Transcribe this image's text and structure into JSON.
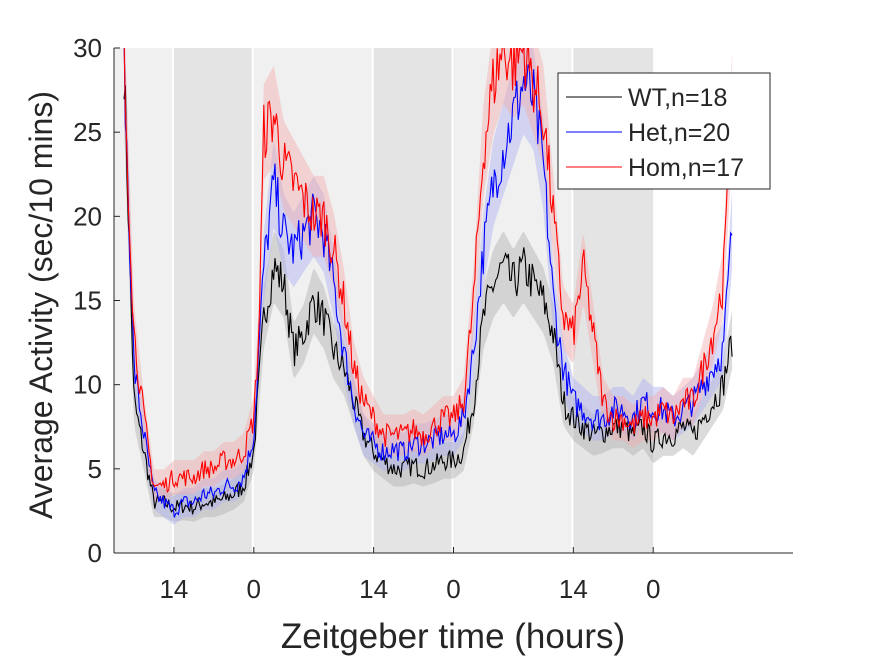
{
  "chart_data": {
    "type": "line",
    "xlabel": "Zeitgeber time (hours)",
    "ylabel": "Average Activity (sec/10 mins)",
    "ylim": [
      0,
      30
    ],
    "yticks": [
      0,
      5,
      10,
      15,
      20,
      25,
      30
    ],
    "xlim": [
      11,
      45
    ],
    "xticks": [
      {
        "x": 14,
        "label": "14"
      },
      {
        "x": 18,
        "label": "0"
      },
      {
        "x": 24,
        "label": "14"
      },
      {
        "x": 28,
        "label": "0"
      },
      {
        "x": 34,
        "label": "14"
      },
      {
        "x": 38,
        "label": "0"
      }
    ],
    "shading": {
      "light_color": "#f0f0f0",
      "dark_color": "#e4e4e4",
      "bands": [
        {
          "from": 11,
          "to": 13.9,
          "kind": "light"
        },
        {
          "from": 14,
          "to": 17.9,
          "kind": "dark"
        },
        {
          "from": 18,
          "to": 23.9,
          "kind": "light"
        },
        {
          "from": 24,
          "to": 27.9,
          "kind": "dark"
        },
        {
          "from": 28,
          "to": 33.9,
          "kind": "light"
        },
        {
          "from": 34,
          "to": 38,
          "kind": "dark"
        }
      ]
    },
    "legend": {
      "position": "top-right"
    },
    "x": [
      11.5,
      12.0,
      12.5,
      13.0,
      13.5,
      14.0,
      14.5,
      15.0,
      15.5,
      16.0,
      16.5,
      17.0,
      17.5,
      18.0,
      18.25,
      18.5,
      19.0,
      19.5,
      20.0,
      20.5,
      21.0,
      21.5,
      22.0,
      22.5,
      23.0,
      23.5,
      24.0,
      24.5,
      25.0,
      25.5,
      26.0,
      26.5,
      27.0,
      27.5,
      28.0,
      28.5,
      29.0,
      29.5,
      30.0,
      30.5,
      31.0,
      31.5,
      32.0,
      32.5,
      33.0,
      33.5,
      34.0,
      34.5,
      35.0,
      35.5,
      36.0,
      36.5,
      37.0,
      37.5,
      38.0,
      38.5,
      39.0,
      39.5,
      40.0,
      40.5,
      41.0,
      41.5,
      42.0
    ],
    "series": [
      {
        "name": "WT,n=18",
        "color": "#000000",
        "band_color": "#b0b0b0",
        "values": [
          29,
          9,
          6,
          3,
          3,
          2.7,
          2.8,
          2.7,
          3,
          3,
          3.2,
          3.5,
          4,
          6,
          10,
          14,
          17,
          16,
          12,
          13,
          15,
          14,
          12,
          11,
          9,
          7,
          6,
          5.5,
          5,
          5,
          5.2,
          5,
          5.2,
          5.5,
          5.5,
          6,
          9,
          14,
          16,
          17,
          16,
          17,
          16,
          15,
          13,
          9,
          8,
          7.5,
          7,
          7.2,
          7.5,
          7.5,
          7,
          7.5,
          6.5,
          7,
          7,
          7.5,
          7,
          8,
          9,
          10,
          13
        ]
      },
      {
        "name": "Het,n=20",
        "color": "#0000ff",
        "band_color": "#aab0f0",
        "values": [
          29,
          11,
          7,
          3.5,
          3,
          2.5,
          3,
          3,
          3.5,
          3.5,
          4,
          4,
          4.5,
          7,
          12,
          17,
          22,
          19,
          18,
          19,
          20,
          19,
          16,
          12,
          9,
          7,
          6.5,
          6,
          6.2,
          6,
          6.5,
          6.5,
          6.7,
          7,
          7,
          8,
          12,
          18,
          22,
          24,
          26,
          28,
          27,
          23,
          15,
          11,
          9,
          8.5,
          8,
          8,
          8.5,
          8.5,
          8,
          9,
          8.5,
          8.5,
          8,
          8.5,
          9,
          10,
          11,
          12,
          20
        ]
      },
      {
        "name": "Hom,n=17",
        "color": "#ff0000",
        "band_color": "#f2aaaa",
        "values": [
          29,
          13,
          8,
          4,
          4,
          4.5,
          4.5,
          4.5,
          5,
          5,
          5.5,
          5.5,
          6,
          8,
          13,
          25,
          26,
          23,
          22,
          21,
          20,
          20,
          18,
          15,
          11,
          9,
          8,
          7,
          7,
          7,
          7.3,
          7,
          7.5,
          8,
          8,
          9,
          15,
          24,
          28,
          30,
          29,
          30,
          28,
          26,
          20,
          14,
          13,
          17,
          13,
          9,
          8,
          8,
          7.5,
          8,
          8,
          8.5,
          8,
          9,
          9,
          11,
          13,
          16,
          28
        ]
      }
    ]
  }
}
